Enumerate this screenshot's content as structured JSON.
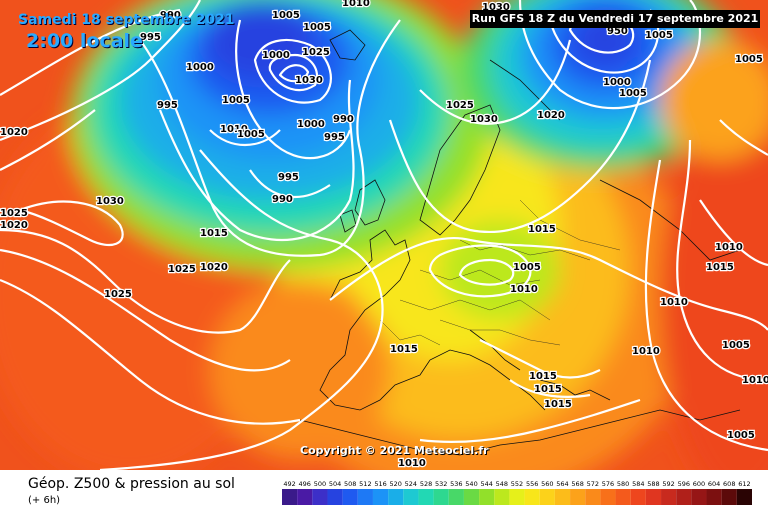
{
  "header": {
    "date": "Samedi 18 septembre 2021",
    "local_time": "2:00 locale",
    "run": "Run GFS 18 Z du Vendredi 17 septembre 2021"
  },
  "copyright": "Copyright © 2021 Meteociel.fr",
  "footer": {
    "title": "Géop. Z500 & pression au sol",
    "subtitle": "(+ 6h)"
  },
  "legend": {
    "ticks": [
      "492",
      "496",
      "500",
      "504",
      "508",
      "512",
      "516",
      "520",
      "524",
      "528",
      "532",
      "536",
      "540",
      "544",
      "548",
      "552",
      "556",
      "560",
      "564",
      "568",
      "572",
      "576",
      "580",
      "584",
      "588",
      "592",
      "596",
      "600",
      "604",
      "608",
      "612"
    ],
    "colors": [
      "#3a1a8a",
      "#4a1aa5",
      "#3c2fc8",
      "#2643e0",
      "#1f5af0",
      "#1e79f5",
      "#1c93f7",
      "#1aaee8",
      "#1ec9d2",
      "#22d8b4",
      "#2ed890",
      "#48d868",
      "#6ada44",
      "#92e02a",
      "#bce81e",
      "#e6f01a",
      "#f8e61a",
      "#fcd21a",
      "#fcbc1a",
      "#fca21a",
      "#fa8a1a",
      "#f8701a",
      "#f45a1c",
      "#ee461e",
      "#e03620",
      "#c82a1e",
      "#b0201a",
      "#961616",
      "#7c1010",
      "#5c0a0a",
      "#2a0404"
    ]
  },
  "pressure_labels": [
    "1005",
    "990",
    "995",
    "1000",
    "1010",
    "1005",
    "1025",
    "1030",
    "1000",
    "1005",
    "995",
    "1010",
    "1005",
    "1000",
    "990",
    "995",
    "995",
    "990",
    "1030",
    "1015",
    "1025",
    "1020",
    "1025",
    "1025",
    "1020",
    "1020",
    "1025",
    "1030",
    "1020",
    "1030",
    "950",
    "1000",
    "1005",
    "1005",
    "1015",
    "1005",
    "1010",
    "1010",
    "1010",
    "1015",
    "1010",
    "1005",
    "1005",
    "1010",
    "1005",
    "1015",
    "1015",
    "1015",
    "1015",
    "1010"
  ]
}
